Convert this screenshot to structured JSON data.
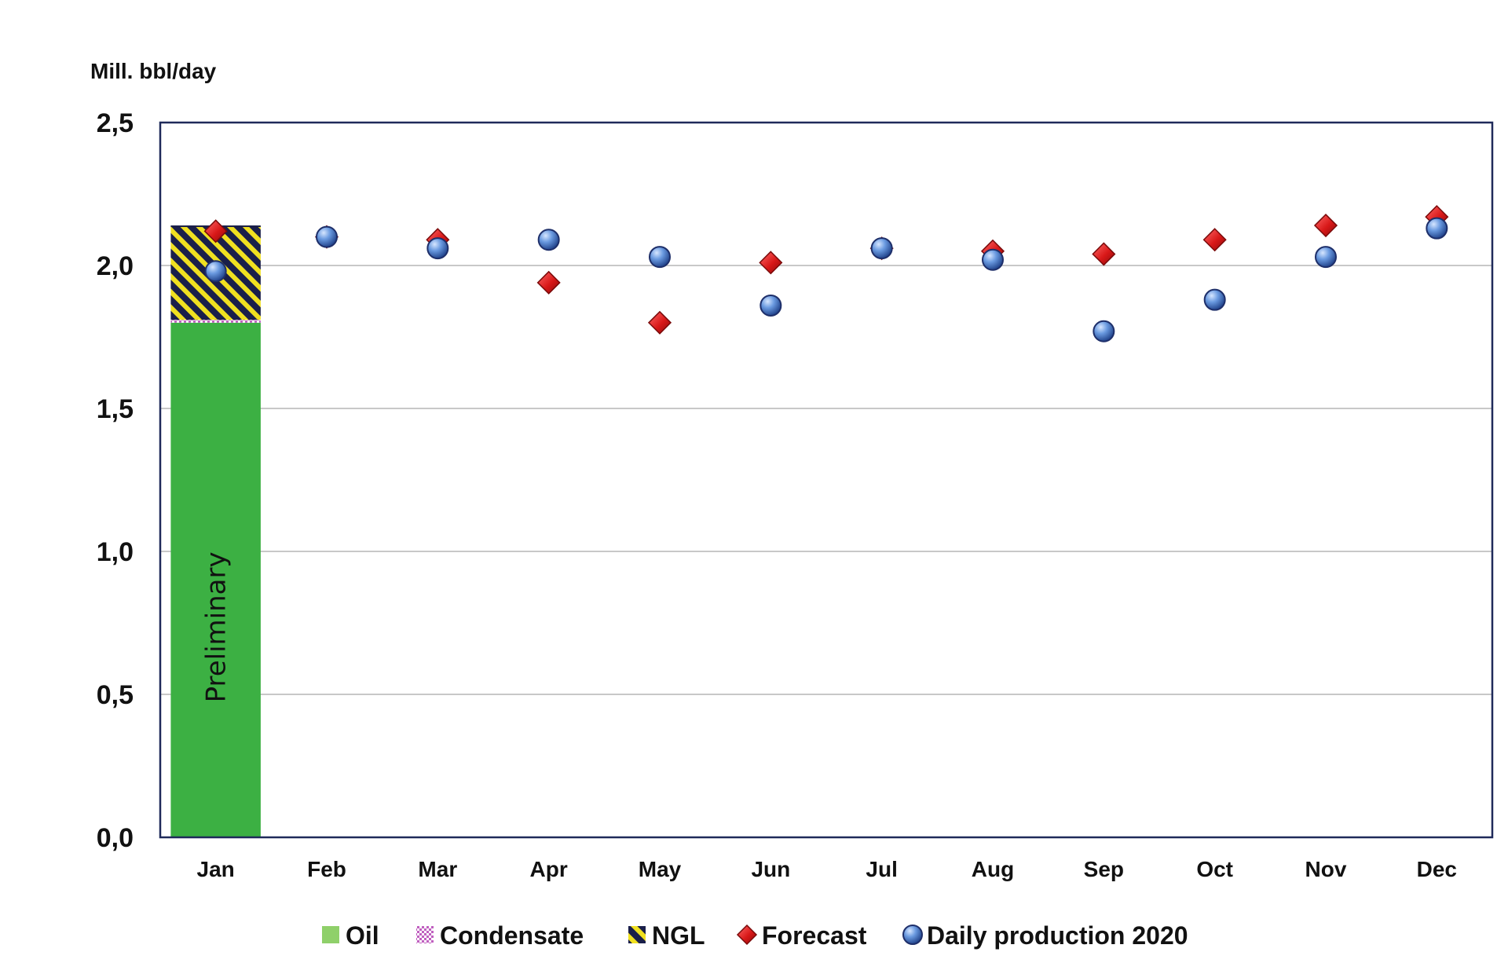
{
  "chart_data": {
    "type": "bar",
    "unit_label": "Mill. bbl/day",
    "ylim": [
      0,
      2.5
    ],
    "yticks": [
      "0,0",
      "0,5",
      "1,0",
      "1,5",
      "2,0",
      "2,5"
    ],
    "yticks_values": [
      0,
      0.5,
      1.0,
      1.5,
      2.0,
      2.5
    ],
    "grid": true,
    "legend_position": "bottom",
    "categories": [
      "Jan",
      "Feb",
      "Mar",
      "Apr",
      "May",
      "Jun",
      "Jul",
      "Aug",
      "Sep",
      "Oct",
      "Nov",
      "Dec"
    ],
    "bar_annotation": "Preliminary",
    "series": [
      {
        "name": "Oil",
        "kind": "stacked-bar",
        "color": "#3cb043",
        "values": [
          1.8,
          null,
          null,
          null,
          null,
          null,
          null,
          null,
          null,
          null,
          null,
          null
        ]
      },
      {
        "name": "Condensate",
        "kind": "stacked-bar",
        "color": "#c060c0",
        "values": [
          0.01,
          null,
          null,
          null,
          null,
          null,
          null,
          null,
          null,
          null,
          null,
          null
        ]
      },
      {
        "name": "NGL",
        "kind": "stacked-bar",
        "color": "#e8e020",
        "values": [
          0.33,
          null,
          null,
          null,
          null,
          null,
          null,
          null,
          null,
          null,
          null,
          null
        ]
      },
      {
        "name": "Forecast",
        "kind": "marker-diamond",
        "color": "#d42020",
        "values": [
          2.12,
          2.1,
          2.09,
          1.94,
          1.8,
          2.01,
          2.06,
          2.05,
          2.04,
          2.09,
          2.14,
          2.17
        ]
      },
      {
        "name": "Daily production 2020",
        "kind": "marker-circle",
        "color": "#4a7cc8",
        "values": [
          1.98,
          2.1,
          2.06,
          2.09,
          2.03,
          1.86,
          2.06,
          2.02,
          1.77,
          1.88,
          2.03,
          2.13
        ]
      }
    ]
  }
}
